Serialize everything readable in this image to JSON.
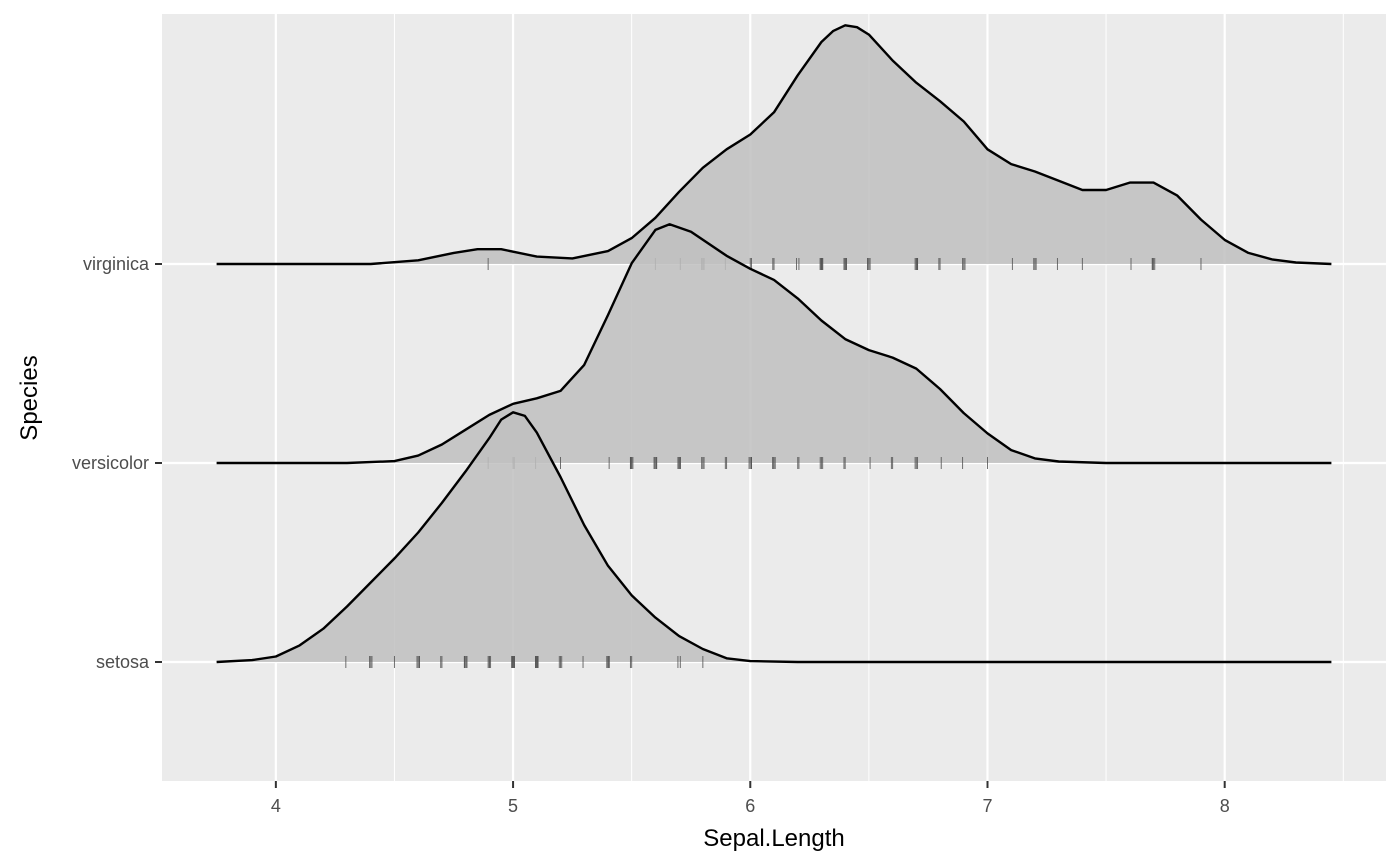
{
  "chart_data": {
    "type": "ridgeline-density",
    "xlabel": "Sepal.Length",
    "ylabel": "Species",
    "xlim": [
      3.52,
      8.68
    ],
    "x_ticks": [
      4,
      5,
      6,
      7,
      8
    ],
    "x_tick_labels": [
      "4",
      "5",
      "6",
      "7",
      "8"
    ],
    "grid": true,
    "legend": "none",
    "colors": {
      "panel_bg": "#ebebeb",
      "grid": "#ffffff",
      "fill": "#bfbfbf",
      "fill_opacity": 0.85,
      "line": "#000000",
      "rug": "#4d4d4d"
    },
    "categories": [
      "setosa",
      "versicolor",
      "virginica"
    ],
    "series": [
      {
        "name": "setosa",
        "density": [
          [
            3.75,
            0.0
          ],
          [
            3.9,
            0.01
          ],
          [
            4.0,
            0.03
          ],
          [
            4.1,
            0.09
          ],
          [
            4.2,
            0.18
          ],
          [
            4.3,
            0.3
          ],
          [
            4.4,
            0.43
          ],
          [
            4.5,
            0.56
          ],
          [
            4.6,
            0.7
          ],
          [
            4.7,
            0.86
          ],
          [
            4.8,
            1.03
          ],
          [
            4.9,
            1.21
          ],
          [
            4.95,
            1.31
          ],
          [
            5.0,
            1.35
          ],
          [
            5.05,
            1.33
          ],
          [
            5.1,
            1.24
          ],
          [
            5.2,
            1.0
          ],
          [
            5.3,
            0.74
          ],
          [
            5.4,
            0.52
          ],
          [
            5.5,
            0.36
          ],
          [
            5.6,
            0.24
          ],
          [
            5.7,
            0.14
          ],
          [
            5.8,
            0.07
          ],
          [
            5.9,
            0.02
          ],
          [
            6.0,
            0.005
          ],
          [
            6.2,
            0.0
          ],
          [
            8.45,
            0.0
          ]
        ],
        "rug": [
          4.3,
          4.4,
          4.4,
          4.4,
          4.5,
          4.6,
          4.6,
          4.6,
          4.6,
          4.7,
          4.7,
          4.8,
          4.8,
          4.8,
          4.8,
          4.8,
          4.9,
          4.9,
          4.9,
          4.9,
          5.0,
          5.0,
          5.0,
          5.0,
          5.0,
          5.0,
          5.0,
          5.0,
          5.1,
          5.1,
          5.1,
          5.1,
          5.1,
          5.1,
          5.1,
          5.1,
          5.2,
          5.2,
          5.2,
          5.3,
          5.4,
          5.4,
          5.4,
          5.4,
          5.4,
          5.5,
          5.5,
          5.7,
          5.7,
          5.8
        ]
      },
      {
        "name": "versicolor",
        "density": [
          [
            3.75,
            0.0
          ],
          [
            4.3,
            0.0
          ],
          [
            4.5,
            0.01
          ],
          [
            4.6,
            0.04
          ],
          [
            4.7,
            0.1
          ],
          [
            4.8,
            0.18
          ],
          [
            4.9,
            0.26
          ],
          [
            5.0,
            0.32
          ],
          [
            5.1,
            0.35
          ],
          [
            5.2,
            0.39
          ],
          [
            5.3,
            0.53
          ],
          [
            5.4,
            0.8
          ],
          [
            5.5,
            1.08
          ],
          [
            5.6,
            1.26
          ],
          [
            5.66,
            1.29
          ],
          [
            5.75,
            1.25
          ],
          [
            5.9,
            1.12
          ],
          [
            6.0,
            1.05
          ],
          [
            6.1,
            0.99
          ],
          [
            6.2,
            0.89
          ],
          [
            6.3,
            0.77
          ],
          [
            6.4,
            0.67
          ],
          [
            6.5,
            0.61
          ],
          [
            6.6,
            0.57
          ],
          [
            6.7,
            0.51
          ],
          [
            6.8,
            0.4
          ],
          [
            6.9,
            0.27
          ],
          [
            7.0,
            0.16
          ],
          [
            7.1,
            0.07
          ],
          [
            7.2,
            0.025
          ],
          [
            7.3,
            0.008
          ],
          [
            7.5,
            0.0
          ],
          [
            8.45,
            0.0
          ]
        ],
        "rug": [
          4.9,
          5.0,
          5.0,
          5.1,
          5.2,
          5.4,
          5.5,
          5.5,
          5.5,
          5.5,
          5.5,
          5.6,
          5.6,
          5.6,
          5.6,
          5.6,
          5.7,
          5.7,
          5.7,
          5.7,
          5.7,
          5.8,
          5.8,
          5.8,
          5.9,
          5.9,
          6.0,
          6.0,
          6.0,
          6.0,
          6.1,
          6.1,
          6.1,
          6.1,
          6.2,
          6.2,
          6.3,
          6.3,
          6.3,
          6.4,
          6.4,
          6.5,
          6.6,
          6.6,
          6.7,
          6.7,
          6.7,
          6.8,
          6.9,
          7.0
        ]
      },
      {
        "name": "virginica",
        "density": [
          [
            3.75,
            0.0
          ],
          [
            4.4,
            0.0
          ],
          [
            4.6,
            0.02
          ],
          [
            4.75,
            0.06
          ],
          [
            4.85,
            0.08
          ],
          [
            4.95,
            0.08
          ],
          [
            5.1,
            0.04
          ],
          [
            5.25,
            0.03
          ],
          [
            5.4,
            0.07
          ],
          [
            5.5,
            0.14
          ],
          [
            5.6,
            0.25
          ],
          [
            5.7,
            0.39
          ],
          [
            5.8,
            0.52
          ],
          [
            5.9,
            0.62
          ],
          [
            6.0,
            0.7
          ],
          [
            6.1,
            0.82
          ],
          [
            6.2,
            1.02
          ],
          [
            6.3,
            1.2
          ],
          [
            6.35,
            1.26
          ],
          [
            6.4,
            1.29
          ],
          [
            6.45,
            1.28
          ],
          [
            6.5,
            1.24
          ],
          [
            6.6,
            1.1
          ],
          [
            6.7,
            0.98
          ],
          [
            6.8,
            0.88
          ],
          [
            6.9,
            0.77
          ],
          [
            7.0,
            0.62
          ],
          [
            7.1,
            0.54
          ],
          [
            7.2,
            0.5
          ],
          [
            7.3,
            0.45
          ],
          [
            7.4,
            0.4
          ],
          [
            7.5,
            0.4
          ],
          [
            7.6,
            0.44
          ],
          [
            7.7,
            0.44
          ],
          [
            7.8,
            0.37
          ],
          [
            7.9,
            0.24
          ],
          [
            8.0,
            0.13
          ],
          [
            8.1,
            0.06
          ],
          [
            8.2,
            0.025
          ],
          [
            8.3,
            0.008
          ],
          [
            8.45,
            0.0
          ]
        ],
        "rug": [
          4.9,
          5.6,
          5.7,
          5.8,
          5.8,
          5.8,
          5.9,
          6.0,
          6.0,
          6.1,
          6.1,
          6.2,
          6.2,
          6.3,
          6.3,
          6.3,
          6.3,
          6.3,
          6.3,
          6.4,
          6.4,
          6.4,
          6.4,
          6.4,
          6.5,
          6.5,
          6.5,
          6.5,
          6.7,
          6.7,
          6.7,
          6.7,
          6.7,
          6.8,
          6.8,
          6.9,
          6.9,
          6.9,
          7.1,
          7.2,
          7.2,
          7.2,
          7.3,
          7.4,
          7.6,
          7.7,
          7.7,
          7.7,
          7.7,
          7.9
        ]
      }
    ]
  }
}
